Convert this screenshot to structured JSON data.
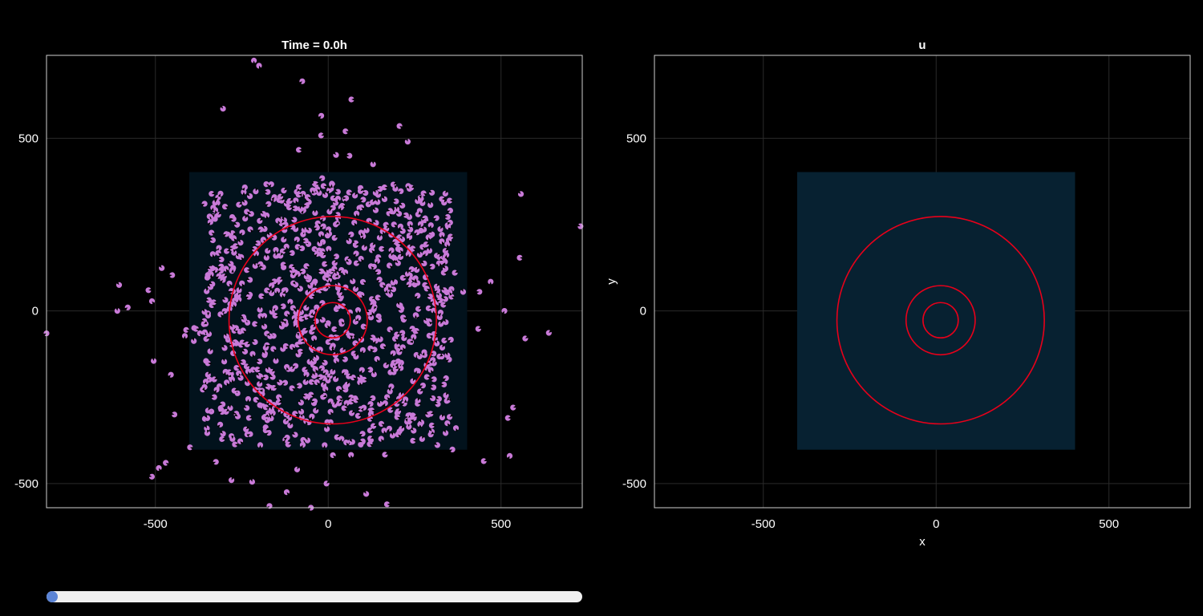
{
  "chart_data": [
    {
      "type": "scatter",
      "title": "Time = 0.0h",
      "xlabel": "",
      "ylabel": "",
      "xlim": [
        -815,
        735
      ],
      "ylim": [
        -570,
        740
      ],
      "xticks": [
        -500,
        0,
        500
      ],
      "yticks": [
        -500,
        0,
        500
      ],
      "xtick_labels": [
        "-500",
        "0",
        "500"
      ],
      "ytick_labels": [
        "-500",
        "0",
        "500"
      ],
      "grid": true,
      "domain_rect": {
        "x": [
          -402,
          402
        ],
        "y": [
          -402,
          402
        ],
        "color": "#02121c"
      },
      "contours": [
        {
          "cx": 13,
          "cy": -27,
          "r": 300
        },
        {
          "cx": 13,
          "cy": -27,
          "r": 100
        },
        {
          "cx": 13,
          "cy": -27,
          "r": 51
        }
      ],
      "contour_color": "#e8001a",
      "marker_color": "#c97ad8",
      "points": {
        "count": 1000,
        "distribution": "cells scattered around the origin, concentrated within about ±400",
        "outliers": [
          [
            -815,
            -65
          ],
          [
            -605,
            75
          ],
          [
            -610,
            0
          ],
          [
            -580,
            10
          ],
          [
            -520,
            60
          ],
          [
            -505,
            -145
          ],
          [
            -510,
            -480
          ],
          [
            -490,
            -455
          ],
          [
            -470,
            -440
          ],
          [
            -455,
            -185
          ],
          [
            -445,
            -300
          ],
          [
            -400,
            -395
          ],
          [
            570,
            -80
          ],
          [
            535,
            -280
          ],
          [
            520,
            -310
          ],
          [
            525,
            -420
          ],
          [
            510,
            0
          ],
          [
            450,
            -435
          ],
          [
            730,
            245
          ],
          [
            230,
            490
          ],
          [
            -215,
            725
          ],
          [
            -200,
            710
          ],
          [
            -75,
            665
          ],
          [
            -20,
            565
          ],
          [
            50,
            520
          ],
          [
            -50,
            -570
          ],
          [
            -170,
            -565
          ],
          [
            -120,
            -525
          ],
          [
            -5,
            -500
          ],
          [
            110,
            -530
          ],
          [
            170,
            -560
          ],
          [
            -220,
            -495
          ],
          [
            -280,
            -490
          ]
        ]
      }
    },
    {
      "type": "heatmap",
      "title": "u",
      "xlabel": "x",
      "ylabel": "y",
      "xlim": [
        -815,
        735
      ],
      "ylim": [
        -570,
        740
      ],
      "xticks": [
        -500,
        0,
        500
      ],
      "yticks": [
        -500,
        0,
        500
      ],
      "xtick_labels": [
        "-500",
        "0",
        "500"
      ],
      "ytick_labels": [
        "-500",
        "0",
        "500"
      ],
      "grid": true,
      "domain_rect": {
        "x": [
          -402,
          402
        ],
        "y": [
          -402,
          402
        ],
        "color": "#072131"
      },
      "contours": [
        {
          "cx": 13,
          "cy": -27,
          "r": 300
        },
        {
          "cx": 13,
          "cy": -27,
          "r": 100
        },
        {
          "cx": 13,
          "cy": -27,
          "r": 51
        }
      ],
      "contour_color": "#e8001a"
    }
  ],
  "slider": {
    "value": 0.0
  }
}
